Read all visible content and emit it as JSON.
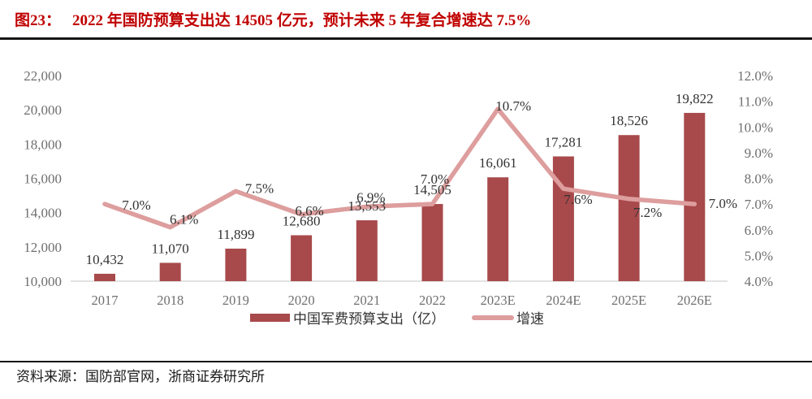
{
  "figure": {
    "label": "图23：",
    "title": "2022 年国防预算支出达 14505 亿元，预计未来 5 年复合增速达 7.5%"
  },
  "source": {
    "text": "资料来源：国防部官网，浙商证券研究所"
  },
  "chart_data": {
    "type": "bar+line",
    "categories": [
      "2017",
      "2018",
      "2019",
      "2020",
      "2021",
      "2022",
      "2023E",
      "2024E",
      "2025E",
      "2026E"
    ],
    "series": [
      {
        "name": "中国军费预算支出（亿）",
        "type": "bar",
        "axis": "left",
        "values": [
          10432,
          11070,
          11899,
          12680,
          13553,
          14505,
          16061,
          17281,
          18526,
          19822
        ],
        "labels": [
          "10,432",
          "11,070",
          "11,899",
          "12,680",
          "13,553",
          "14,505",
          "16,061",
          "17,281",
          "18,526",
          "19,822"
        ]
      },
      {
        "name": "增速",
        "type": "line",
        "axis": "right",
        "values": [
          7.0,
          6.1,
          7.5,
          6.6,
          6.9,
          7.0,
          10.7,
          7.6,
          7.2,
          7.0
        ],
        "labels": [
          "7.0%",
          "6.1%",
          "7.5%",
          "6.6%",
          "6.9%",
          "7.0%",
          "10.7%",
          "7.6%",
          "7.2%",
          "7.0%"
        ]
      }
    ],
    "left_axis": {
      "min": 10000,
      "max": 22000,
      "step": 2000,
      "ticks": [
        "10,000",
        "12,000",
        "14,000",
        "16,000",
        "18,000",
        "20,000",
        "22,000"
      ]
    },
    "right_axis": {
      "min": 4.0,
      "max": 12.0,
      "step": 1.0,
      "ticks": [
        "4.0%",
        "5.0%",
        "6.0%",
        "7.0%",
        "8.0%",
        "9.0%",
        "10.0%",
        "11.0%",
        "12.0%"
      ]
    },
    "legend": [
      {
        "label": "中国军费预算支出（亿）",
        "swatch": "bar"
      },
      {
        "label": "增速",
        "swatch": "line"
      }
    ],
    "grid": false,
    "legend_position": "bottom"
  },
  "colors": {
    "bar": "#a8494b",
    "line": "#dd9e9d",
    "title_red": "#c00000",
    "axis_text": "#6f6f6f",
    "label_dark": "#333333",
    "baseline": "#d9d9d9"
  }
}
